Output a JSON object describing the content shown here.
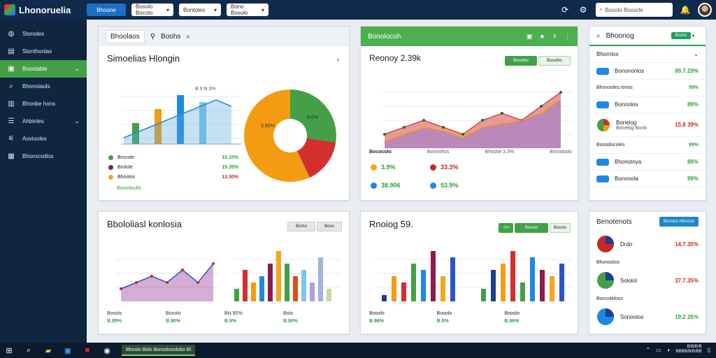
{
  "app": {
    "title": "Lhonoruelia"
  },
  "topbar": {
    "primary_btn": "Bhoone",
    "select1": "Bosolo Bocolo",
    "select2": "Bontoles",
    "select3": "Bono Bosolo",
    "search_placeholder": "Bosolo Booorle"
  },
  "sidebar": {
    "items": [
      {
        "label": "Stonoles",
        "icon": "dashboard-icon"
      },
      {
        "label": "Stonthonlas",
        "icon": "stats-icon"
      },
      {
        "label": "Boostable",
        "icon": "folder-icon",
        "active": true
      },
      {
        "label": "Bhonoiauls",
        "icon": "search-icon"
      },
      {
        "label": "Bhonbe hons",
        "icon": "briefcase-icon"
      },
      {
        "label": "Ahbinles",
        "icon": "list-icon"
      },
      {
        "label": "Aoviooles",
        "icon": "sliders-icon"
      },
      {
        "label": "Bhorocodlos",
        "icon": "grid-icon"
      }
    ]
  },
  "p1": {
    "tab1": "Bhoolaos",
    "tab2": "Boohs",
    "title": "Simoelias Hlongin",
    "legend": [
      {
        "label": "Brocole",
        "value": "15.10%",
        "color": "#43a047",
        "vcls": "val-g"
      },
      {
        "label": "Brolole",
        "value": "19.35%",
        "color": "#8e1b4b",
        "vcls": "val-g"
      },
      {
        "label": "Bhoolos",
        "value": "13.30%",
        "color": "#f6a51a",
        "vcls": "val-r"
      }
    ],
    "foot": "Bonodoulls",
    "chart_label": "B.9 N.3%",
    "pie_labels": [
      "3.60%",
      "8.6%"
    ],
    "chart_data": {
      "type": "bar",
      "values": [
        3,
        5,
        7,
        6
      ],
      "line": [
        1,
        2,
        3,
        4,
        5,
        6,
        7,
        6
      ]
    }
  },
  "p2": {
    "title": "Bonolocoh",
    "headline": "Reonoy 2.39k",
    "btn1": "Bosohlo",
    "btn2": "Bosohlo",
    "row_labels": [
      "Bococolo",
      "Bonoohos",
      "Bhoshe 3.3%",
      "Borodoolo"
    ],
    "stats": [
      {
        "v": "3.9%",
        "color": "#f6a51a",
        "cls": "val-g"
      },
      {
        "v": "33.3%",
        "color": "#c62828",
        "cls": "val-r"
      },
      {
        "v": "38.906",
        "color": "#1e88e5",
        "cls": "val-g"
      },
      {
        "v": "53.9%",
        "color": "#1e88e5",
        "cls": "val-g"
      }
    ],
    "chart_data": {
      "type": "area",
      "x": [
        1,
        2,
        3,
        4,
        5,
        6,
        7,
        8,
        9,
        10
      ],
      "series": [
        {
          "values": [
            2,
            3,
            4,
            3,
            2,
            4,
            5,
            4,
            6,
            8
          ]
        },
        {
          "values": [
            1,
            2,
            3,
            2.5,
            1.5,
            3,
            3.5,
            4,
            5,
            7
          ]
        }
      ]
    }
  },
  "p3": {
    "title": "Bhoonog",
    "btn": "Bosns",
    "items": [
      {
        "label": "Bhornlos",
        "value": "",
        "chev": true
      },
      {
        "label": "Bonononlos",
        "value": "89.7.29%",
        "icon": "chip"
      },
      {
        "label": "Bhonooles lonos",
        "value": "99%",
        "plain": true
      },
      {
        "label": "Bonnolos",
        "value": "89%",
        "icon": "chip"
      },
      {
        "label": "Bonelog",
        "sub": "Bonelog Bonb",
        "value": "15.8 39%",
        "vcls": "val-r",
        "icon": "pie"
      },
      {
        "label": "Bonodocoles",
        "value": "99%",
        "plain": true
      },
      {
        "label": "Bhonotnya",
        "value": "89%",
        "icon": "chip"
      },
      {
        "label": "Bonooola",
        "value": "99%",
        "icon": "chip"
      }
    ]
  },
  "p4": {
    "title": "Bbololiasl konlosia",
    "btn1": "Bomo",
    "btn2": "Boso",
    "foot": [
      {
        "label": "Bosolo",
        "v": "B.95%"
      },
      {
        "label": "Booolo",
        "v": "B.90%"
      },
      {
        "label": "BH.90%",
        "v": "B.9%"
      },
      {
        "label": "Bolo",
        "v": "B.90%"
      }
    ],
    "chart_data": {
      "type": "bar",
      "values": [
        2,
        5,
        3,
        4,
        6,
        8,
        6,
        4,
        5,
        3,
        7,
        2
      ]
    }
  },
  "p5": {
    "title": "Rnoiog 59.",
    "btn1": "Bocolo",
    "btn2": "Bocolo",
    "foot": [
      {
        "label": "Booolo",
        "v": "B.96%"
      },
      {
        "label": "Booolo",
        "v": "B.0%"
      },
      {
        "label": "Booolo",
        "v": "B.96%"
      }
    ],
    "chart_data": {
      "type": "bar",
      "values": [
        1,
        4,
        3,
        6,
        5,
        8,
        4,
        7,
        2,
        5,
        6,
        8,
        3,
        7,
        5,
        4,
        6
      ]
    }
  },
  "p6": {
    "title": "Benotenots",
    "btn": "Booooo Hioscoo",
    "items": [
      {
        "label": "Drdo",
        "value": "14.7.35%",
        "cls": "val-r",
        "color": "#c62828"
      },
      {
        "label": "Bhonoolos",
        "value": "",
        "plain": true
      },
      {
        "label": "Sololol",
        "value": "37.7.35%",
        "cls": "val-r",
        "color": "#43a047"
      },
      {
        "label": "Boncoleloos",
        "value": "",
        "plain": true
      },
      {
        "label": "Sonoolos",
        "value": "19.2 25%",
        "cls": "val-g",
        "color": "#1e88e5"
      }
    ]
  },
  "taskbar": {
    "app_label": "Bhoolo Bolo Bonodooolobo Bl",
    "time": "B/B/B/B",
    "date": "BBBB/B/B/BB"
  }
}
